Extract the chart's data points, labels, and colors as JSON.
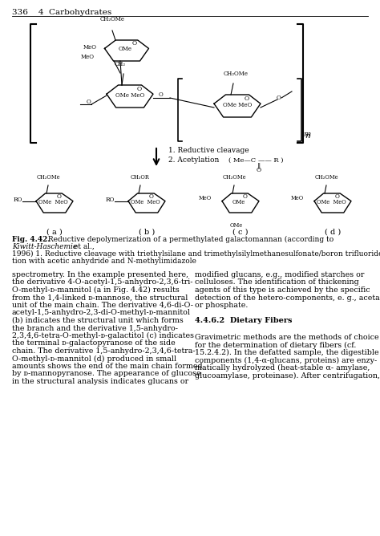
{
  "page_header": "336    4  Carbohydrates",
  "fig_caption_bold": "Fig. 4.42.",
  "fig_caption_rest": " Reductive depolymerization of a permethylated galactomannan (according to",
  "fig_caption_italic": "Kiwitt-Haschemie",
  "fig_caption_etal": " et al.,",
  "fig_caption_line2": "1996) 1. Reductive cleavage with triethylsilane and trimethylsilylmethanesulfonate/boron trifluoride 2. Acetyla-",
  "fig_caption_line3": "tion with acetic anhydride and N-methylimidazole",
  "section_header": "4.4.6.2  Dietary Fibers",
  "left_lines": [
    "spectrometry. In the example presented here,",
    "the derivative 4-O-acetyl-1,5-anhydro-2,3,6-tri-",
    "O-methyl-ᴅ-mannitol (a in Fig. 4.42) results",
    "from the 1,4-linked ᴅ-mannose, the structural",
    "unit of the main chain. The derivative 4,6-di-O-",
    "acetyl-1,5-anhydro-2,3-di-O-methyl-ᴅ-mannitol",
    "(b) indicates the structural unit which forms",
    "the branch and the derivative 1,5-anhydro-",
    "2,3,4,6-tetra-O-methyl-ᴅ-galactitol (c) indicates",
    "the terminal ᴅ-galactopyranose of the side",
    "chain. The derivative 1,5-anhydro-2,3,4,6-tetra-",
    "O-methyl-ᴅ-mannitol (d) produced in small",
    "amounts shows the end of the main chain formed",
    "by ᴅ-mannopyranose. The appearance of glucose",
    "in the structural analysis indicates glucans or"
  ],
  "right_lines_1": [
    "modified glucans, e.g., modified starches or",
    "celluloses. The identification of thickening",
    "agents of this type is achieved by the specific",
    "detection of the hetero-components, e. g., acetate",
    "or phosphate."
  ],
  "right_lines_2": [
    "Gravimetric methods are the methods of choice",
    "for the determination of dietary fibers (cf.",
    "15.2.4.2). In the defatted sample, the digestible",
    "components (1,4-α-glucans, proteins) are enzy-",
    "matically hydrolyzed (heat-stable α- amylase,",
    "glucoamylase, proteinase). After centrifugation,"
  ],
  "bg_color": "#ffffff",
  "text_color": "#000000",
  "font_size_body": 6.8,
  "font_size_caption": 6.5,
  "font_size_header": 7.0,
  "font_size_page_header": 7.5
}
